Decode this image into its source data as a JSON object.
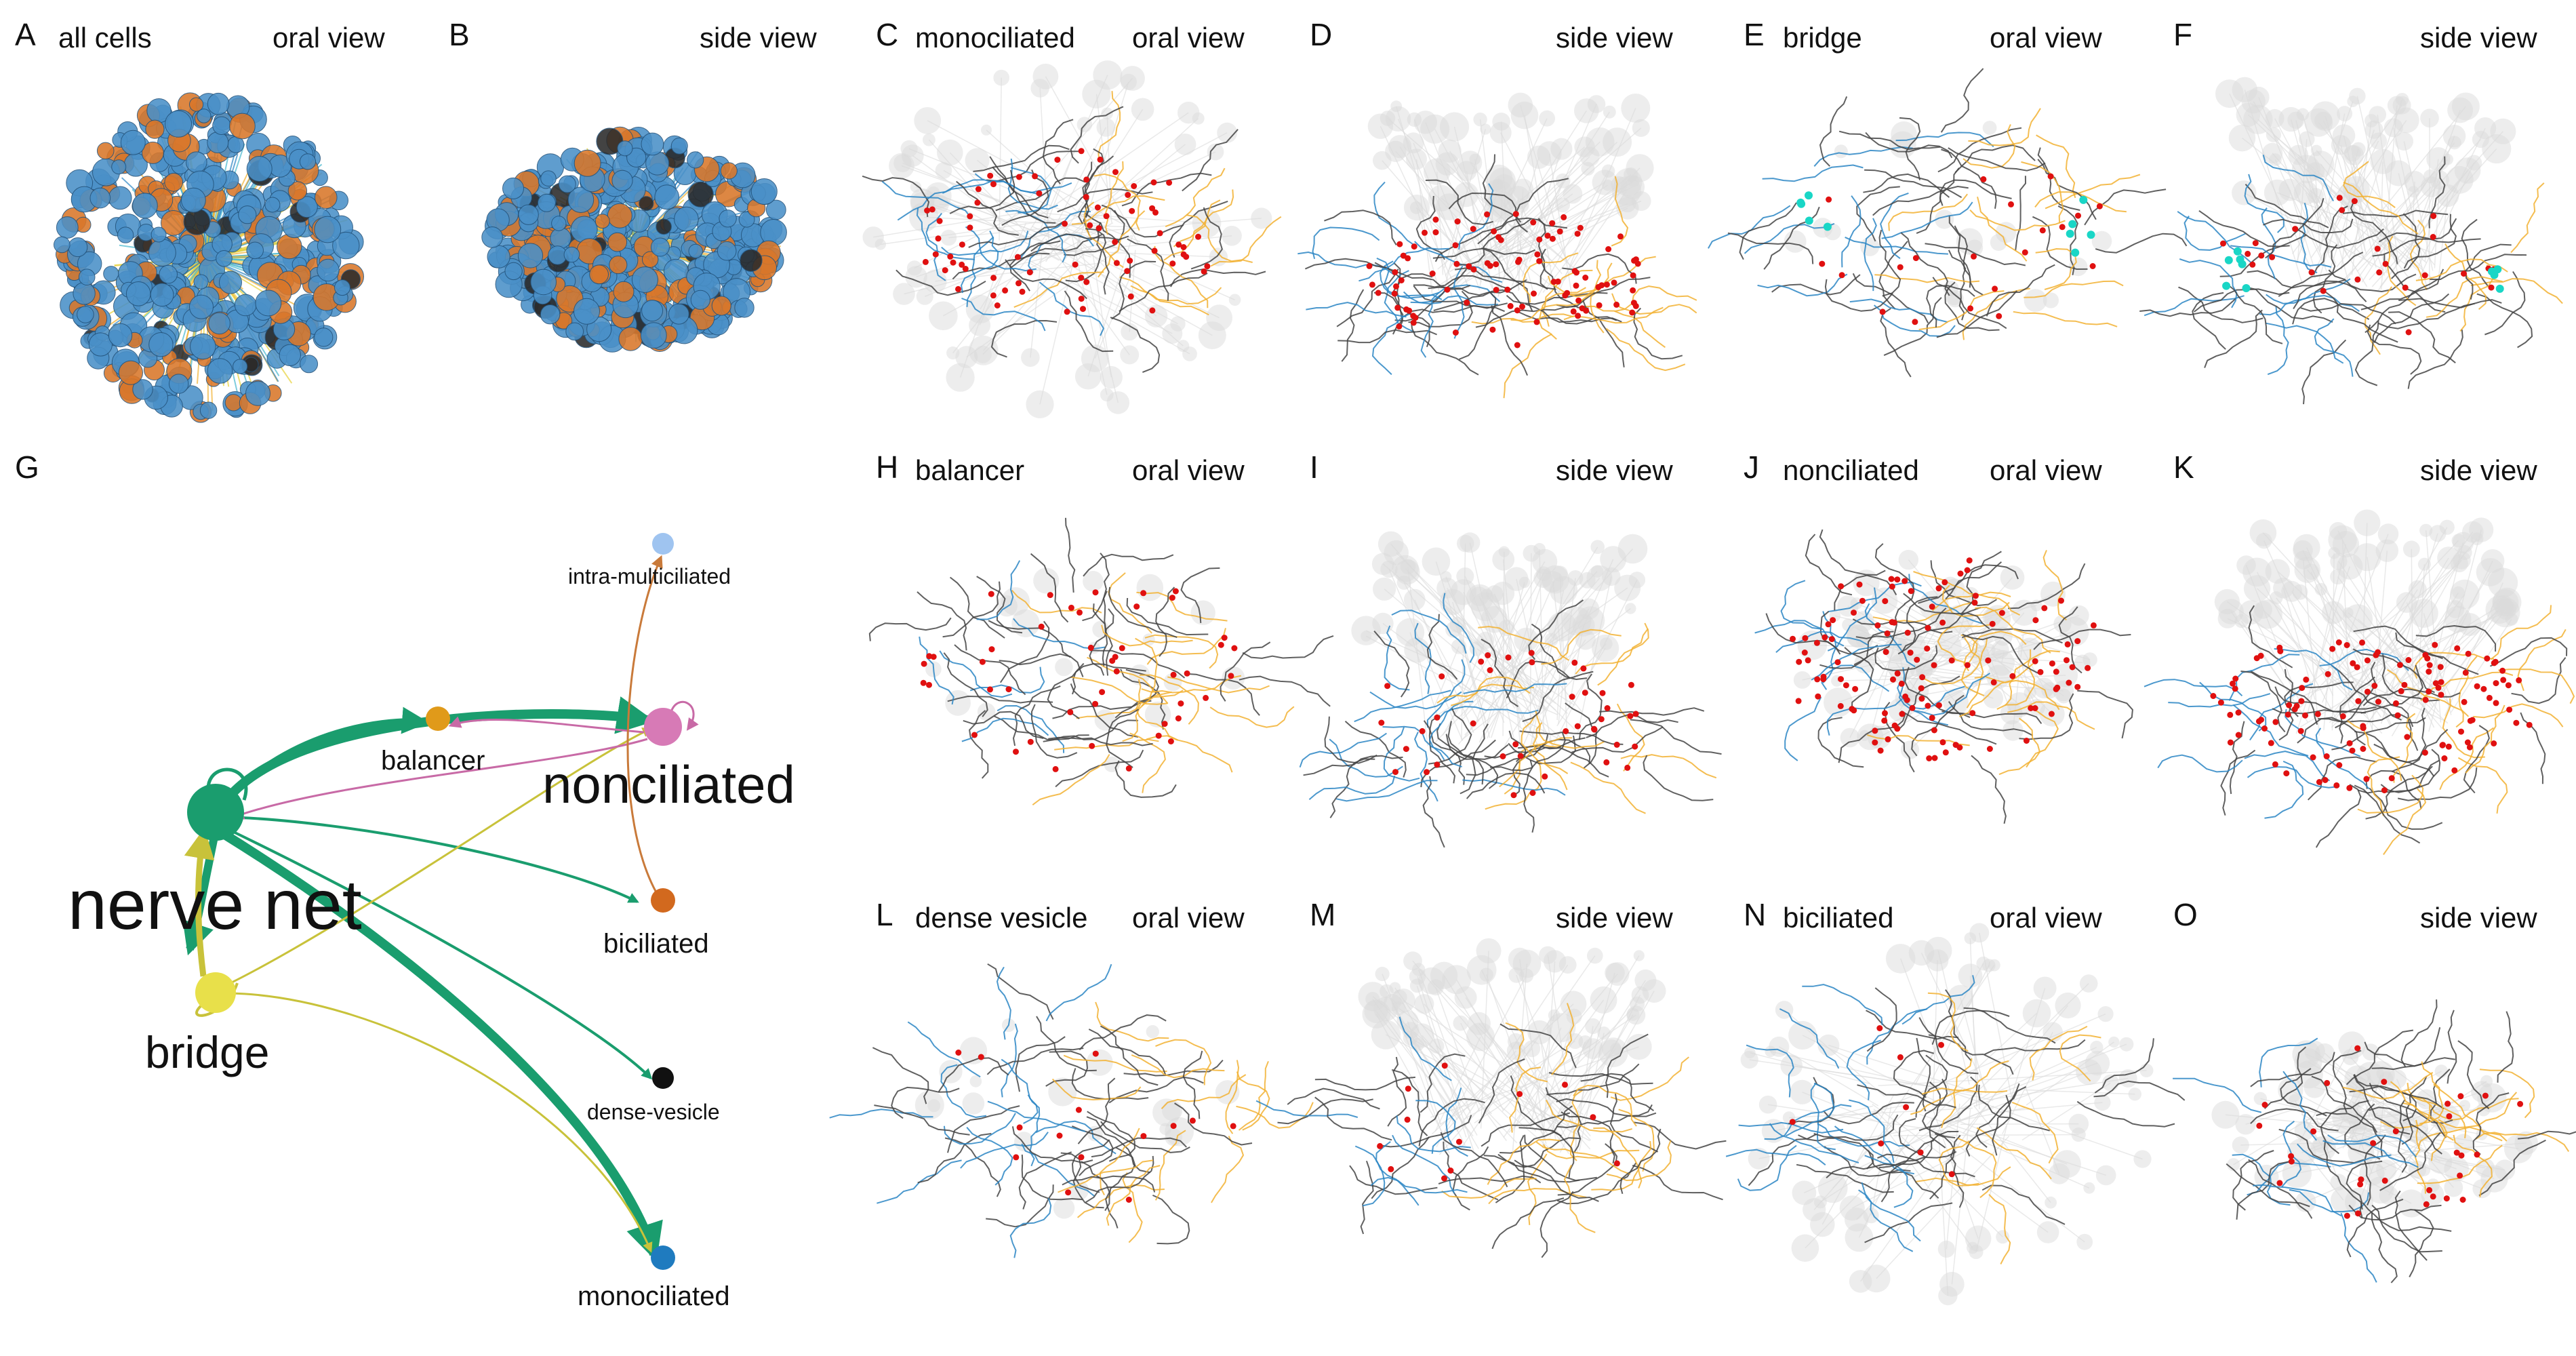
{
  "panels": [
    {
      "letter": "A",
      "title": "all cells",
      "view": "oral view"
    },
    {
      "letter": "B",
      "title": "",
      "view": "side view"
    },
    {
      "letter": "C",
      "title": "monociliated",
      "view": "oral view"
    },
    {
      "letter": "D",
      "title": "",
      "view": "side view"
    },
    {
      "letter": "E",
      "title": "bridge",
      "view": "oral view"
    },
    {
      "letter": "F",
      "title": "",
      "view": "side view"
    },
    {
      "letter": "H",
      "title": "balancer",
      "view": "oral view"
    },
    {
      "letter": "I",
      "title": "",
      "view": "side view"
    },
    {
      "letter": "J",
      "title": "nonciliated",
      "view": "oral view"
    },
    {
      "letter": "K",
      "title": "",
      "view": "side view"
    },
    {
      "letter": "L",
      "title": "dense vesicle",
      "view": "oral view"
    },
    {
      "letter": "M",
      "title": "",
      "view": "side view"
    },
    {
      "letter": "N",
      "title": "biciliated",
      "view": "oral view"
    },
    {
      "letter": "O",
      "title": "",
      "view": "side view"
    }
  ],
  "network": {
    "letter": "G",
    "nodes": {
      "nerve_net": "nerve net",
      "bridge": "bridge",
      "balancer": "balancer",
      "nonciliated": "nonciliated",
      "intra_multiciliated": "intra-multiciliated",
      "biciliated": "biciliated",
      "dense_vesicle": "dense-vesicle",
      "monociliated": "monociliated"
    }
  },
  "colors": {
    "nerve_net": "#1a9d6e",
    "bridge": "#e8e04a",
    "balancer": "#e09a1a",
    "nonciliated": "#d77ab6",
    "intra_multiciliated": "#9fc4f0",
    "biciliated": "#d2691e",
    "dense_vesicle": "#111111",
    "monociliated": "#1f7bbf",
    "neurite_blue": "#2c86c4",
    "neurite_orange": "#f2b233",
    "neurite_gray": "#444444",
    "ghost": "#bdbdbd",
    "synapse": "#e01010",
    "cyan_marker": "#19d6c6"
  }
}
